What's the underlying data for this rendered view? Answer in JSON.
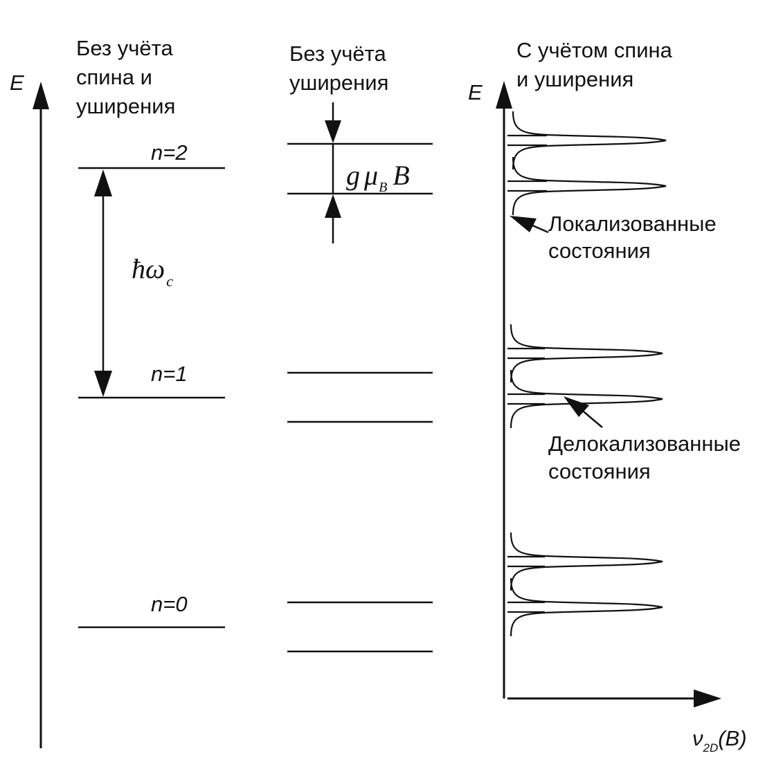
{
  "columns": {
    "left": {
      "title_lines": [
        "Без учёта",
        "спина и",
        "уширения"
      ],
      "axis_label": "E",
      "levels": [
        "n=2",
        "n=1",
        "n=0"
      ],
      "spacing_label": {
        "base": "ħω",
        "sub": "c"
      }
    },
    "middle": {
      "title_lines": [
        "Без учёта",
        "уширения"
      ],
      "splitting_label": {
        "g": "g",
        "mu": "μ",
        "sub": "B",
        "B": "B"
      }
    },
    "right": {
      "title_lines": [
        "С учётом спина",
        "и уширения"
      ],
      "axis_label": "E",
      "x_axis_label": {
        "base": "ν",
        "sub": "2D",
        "arg": "(B)"
      },
      "annotations": {
        "localized": [
          "Локализованные",
          "состояния"
        ],
        "delocalized": [
          "Делокализованные",
          "состояния"
        ]
      }
    }
  }
}
